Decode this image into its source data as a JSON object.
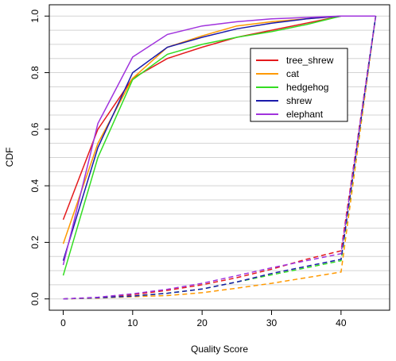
{
  "chart_data": {
    "type": "line",
    "title": "",
    "xlabel": "Quality Score",
    "ylabel": "CDF",
    "xlim": [
      -2,
      47
    ],
    "ylim": [
      -0.04,
      1.04
    ],
    "x_ticks": [
      0,
      10,
      20,
      30,
      40
    ],
    "y_ticks": [
      0.0,
      0.2,
      0.4,
      0.6,
      0.8,
      1.0
    ],
    "y_tick_labels": [
      "0.0",
      "0.2",
      "0.4",
      "0.6",
      "0.8",
      "1.0"
    ],
    "grid": "horizontal",
    "legend_position": "top-right",
    "x": [
      0,
      5,
      10,
      15,
      20,
      25,
      30,
      35,
      40,
      45
    ],
    "series": [
      {
        "name": "tree_shrew",
        "color": "#e41a1c",
        "values": [
          0.28,
          0.6,
          0.78,
          0.85,
          0.89,
          0.925,
          0.95,
          0.975,
          1.0,
          1.0
        ],
        "dashed_values": [
          0.0,
          0.005,
          0.015,
          0.03,
          0.05,
          0.075,
          0.105,
          0.14,
          0.17,
          1.0
        ]
      },
      {
        "name": "cat",
        "color": "#ff9900",
        "values": [
          0.195,
          0.55,
          0.78,
          0.89,
          0.93,
          0.965,
          0.98,
          0.99,
          1.0,
          1.0
        ],
        "dashed_values": [
          0.0,
          0.003,
          0.008,
          0.012,
          0.022,
          0.038,
          0.055,
          0.075,
          0.095,
          1.0
        ]
      },
      {
        "name": "hedgehog",
        "color": "#33dd22",
        "values": [
          0.083,
          0.5,
          0.775,
          0.865,
          0.9,
          0.925,
          0.945,
          0.97,
          1.0,
          1.0
        ],
        "dashed_values": [
          0.0,
          0.004,
          0.01,
          0.02,
          0.035,
          0.06,
          0.085,
          0.11,
          0.135,
          1.0
        ]
      },
      {
        "name": "shrew",
        "color": "#1a1aaa",
        "values": [
          0.135,
          0.535,
          0.8,
          0.89,
          0.925,
          0.955,
          0.975,
          0.99,
          1.0,
          1.0
        ],
        "dashed_values": [
          0.0,
          0.004,
          0.01,
          0.02,
          0.035,
          0.06,
          0.09,
          0.115,
          0.14,
          1.0
        ]
      },
      {
        "name": "elephant",
        "color": "#a033dd",
        "values": [
          0.12,
          0.62,
          0.855,
          0.935,
          0.965,
          0.98,
          0.99,
          0.995,
          1.0,
          1.0
        ],
        "dashed_values": [
          0.0,
          0.006,
          0.018,
          0.034,
          0.055,
          0.082,
          0.11,
          0.135,
          0.16,
          1.0
        ]
      }
    ]
  }
}
